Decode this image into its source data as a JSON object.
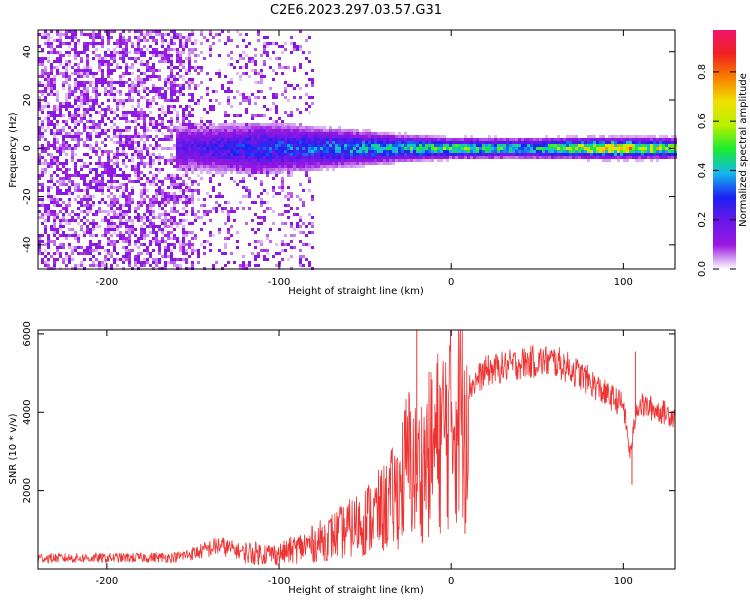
{
  "title": "C2E6.2023.297.03.57.G31",
  "colors": {
    "snr_line": "#ee3333",
    "colorbar": [
      "#ffffff",
      "#9a18e0",
      "#6a18e8",
      "#1a22f2",
      "#14b8ee",
      "#18ec30",
      "#b8f000",
      "#f0e000",
      "#f88000",
      "#f02020",
      "#f0146e"
    ]
  },
  "chart_data": [
    {
      "type": "heatmap",
      "xlabel": "Height of straight line (km)",
      "ylabel": "Frequency (Hz)",
      "xlim": [
        -240,
        130
      ],
      "ylim": [
        -50,
        49
      ],
      "xticks": [
        -200,
        -100,
        0,
        100
      ],
      "yticks": [
        -40,
        -20,
        0,
        20,
        40
      ],
      "colorbar": {
        "label": "Normalized spectral amplitude",
        "range": [
          0,
          0.97
        ],
        "ticks": [
          "0.0",
          "0.2",
          "0.4",
          "0.6",
          "0.8"
        ]
      },
      "features": {
        "broadband_noise_region_km": [
          -240,
          -80
        ],
        "sparse_noise_region_km": [
          -150,
          -80
        ],
        "signal_band": [
          {
            "x": -150,
            "half_width_hz": 7,
            "peak_amplitude": 0.28
          },
          {
            "x": -110,
            "half_width_hz": 8,
            "peak_amplitude": 0.38
          },
          {
            "x": -70,
            "half_width_hz": 6,
            "peak_amplitude": 0.45
          },
          {
            "x": -30,
            "half_width_hz": 4,
            "peak_amplitude": 0.55
          },
          {
            "x": 0,
            "half_width_hz": 3,
            "peak_amplitude": 0.65
          },
          {
            "x": 50,
            "half_width_hz": 3,
            "peak_amplitude": 0.55
          },
          {
            "x": 90,
            "half_width_hz": 3,
            "peak_amplitude": 0.95
          },
          {
            "x": 130,
            "half_width_hz": 3,
            "peak_amplitude": 0.7
          }
        ]
      }
    },
    {
      "type": "line",
      "xlabel": "Height of straight line (km)",
      "ylabel": "SNR (10 * v/v)",
      "xlim": [
        -240,
        130
      ],
      "ylim": [
        0,
        6100
      ],
      "xticks": [
        -200,
        -100,
        0,
        100
      ],
      "yticks": [
        2000,
        4000,
        6000
      ],
      "series": [
        {
          "x": [
            -240,
            -200,
            -160,
            -145,
            -135,
            -120,
            -100,
            -80,
            -60,
            -40,
            -30,
            -25,
            -20,
            -10,
            0,
            10,
            20,
            30,
            40,
            50,
            60,
            70,
            80,
            90,
            100,
            104,
            108,
            120,
            130
          ],
          "y": [
            280,
            280,
            300,
            450,
            600,
            420,
            380,
            650,
            1000,
            1500,
            2000,
            2800,
            2400,
            3100,
            3800,
            4600,
            5050,
            5150,
            5250,
            5300,
            5300,
            5100,
            4800,
            4450,
            4200,
            2900,
            4200,
            4050,
            3900
          ]
        }
      ],
      "spikes": [
        {
          "x": -20,
          "y": 6100
        },
        {
          "x": 8,
          "y": 900
        },
        {
          "x": 105,
          "y": 2150
        },
        {
          "x": 107,
          "y": 5550
        }
      ]
    }
  ]
}
